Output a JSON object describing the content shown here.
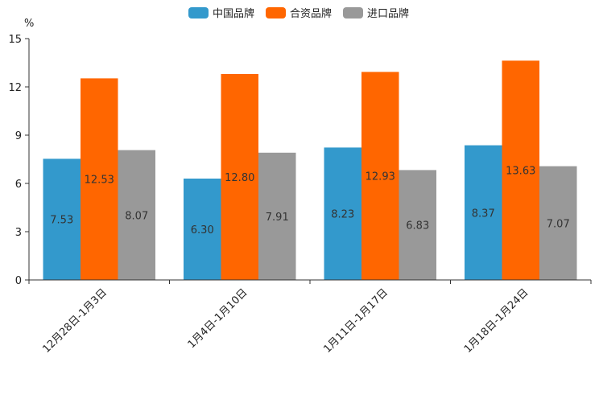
{
  "chart_data": {
    "type": "bar",
    "title": "",
    "unit_label": "%",
    "xlabel": "",
    "ylabel": "%",
    "ylim": [
      0,
      15
    ],
    "yticks": [
      0,
      3,
      6,
      9,
      12,
      15
    ],
    "grid": false,
    "legend_position": "top-center",
    "categories": [
      "12月28日-1月3日",
      "1月4日-1月10日",
      "1月11日-1月17日",
      "1月18日-1月24日"
    ],
    "series": [
      {
        "name": "中国品牌",
        "color": "#3399cc",
        "values": [
          7.53,
          6.3,
          8.23,
          8.37
        ],
        "labels": [
          "7.53",
          "6.30",
          "8.23",
          "8.37"
        ]
      },
      {
        "name": "合资品牌",
        "color": "#ff6600",
        "values": [
          12.53,
          12.8,
          12.93,
          13.63
        ],
        "labels": [
          "12.53",
          "12.80",
          "12.93",
          "13.63"
        ]
      },
      {
        "name": "进口品牌",
        "color": "#999999",
        "values": [
          8.07,
          7.91,
          6.83,
          7.07
        ],
        "labels": [
          "8.07",
          "7.91",
          "6.83",
          "7.07"
        ]
      }
    ]
  }
}
